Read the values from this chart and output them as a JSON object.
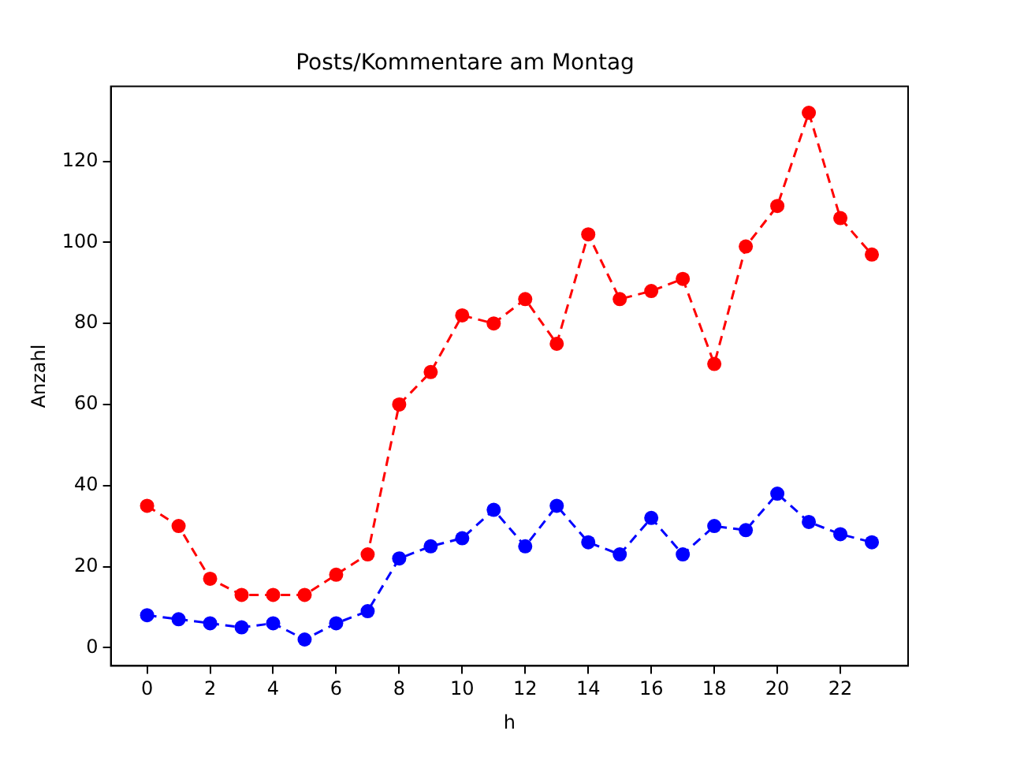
{
  "chart_data": {
    "type": "line",
    "title": "Posts/Kommentare am Montag",
    "xlabel": "h",
    "ylabel": "Anzahl",
    "x": [
      0,
      1,
      2,
      3,
      4,
      5,
      6,
      7,
      8,
      9,
      10,
      11,
      12,
      13,
      14,
      15,
      16,
      17,
      18,
      19,
      20,
      21,
      22,
      23
    ],
    "series": [
      {
        "color": "#ff0000",
        "values": [
          35,
          30,
          17,
          13,
          13,
          13,
          18,
          23,
          60,
          68,
          82,
          80,
          86,
          75,
          102,
          86,
          88,
          91,
          70,
          99,
          109,
          132,
          106,
          97
        ]
      },
      {
        "color": "#0000ff",
        "values": [
          8,
          7,
          6,
          5,
          6,
          2,
          6,
          9,
          22,
          25,
          27,
          34,
          25,
          35,
          26,
          23,
          32,
          23,
          30,
          29,
          38,
          31,
          28,
          26
        ]
      }
    ],
    "xlim": [
      -1.15,
      24.15
    ],
    "ylim": [
      -4.5,
      138.5
    ],
    "xticks": [
      0,
      2,
      4,
      6,
      8,
      10,
      12,
      14,
      16,
      18,
      20,
      22
    ],
    "yticks": [
      0,
      20,
      40,
      60,
      80,
      100,
      120
    ],
    "grid": false,
    "legend": false,
    "marker": "circle",
    "line_style": "dashed"
  }
}
